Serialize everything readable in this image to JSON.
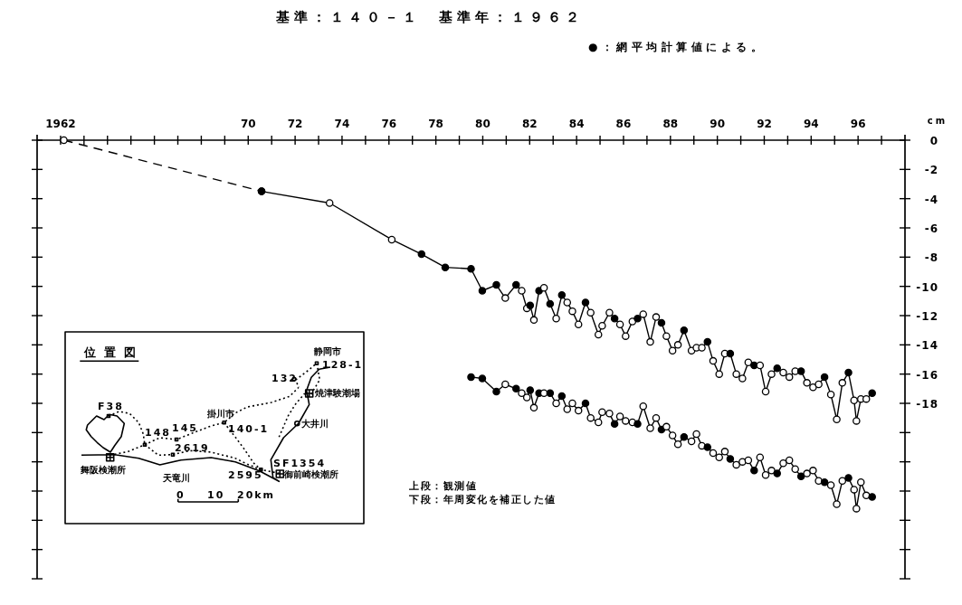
{
  "chart_data": {
    "type": "line",
    "title": "基準：１４０－１　基準年：１９６２",
    "ylabel": "cm",
    "annotations": [
      "●：網平均計算値による。",
      "上段：観測値",
      "下段：年周変化を補正した値",
      "位置図",
      "静岡市",
      "128-1",
      "132",
      "焼津験潮場",
      "F38",
      "148",
      "145",
      "掛川市",
      "140-1",
      "大井川",
      "2619",
      "SF1354",
      "舞阪検潮所",
      "天竜川",
      "2595",
      "御前崎検潮所",
      "0",
      "10",
      "20km"
    ],
    "xlim": [
      1961,
      1998
    ],
    "xticks": [
      {
        "value": 1962,
        "label": "1962"
      },
      {
        "value": 1963,
        "label": null
      },
      {
        "value": 1964,
        "label": null
      },
      {
        "value": 1965,
        "label": null
      },
      {
        "value": 1966,
        "label": null
      },
      {
        "value": 1967,
        "label": null
      },
      {
        "value": 1968,
        "label": null
      },
      {
        "value": 1969,
        "label": null
      },
      {
        "value": 1970,
        "label": "70"
      },
      {
        "value": 1971,
        "label": null
      },
      {
        "value": 1972,
        "label": "72"
      },
      {
        "value": 1973,
        "label": null
      },
      {
        "value": 1974,
        "label": "74"
      },
      {
        "value": 1975,
        "label": null
      },
      {
        "value": 1976,
        "label": "76"
      },
      {
        "value": 1977,
        "label": null
      },
      {
        "value": 1978,
        "label": "78"
      },
      {
        "value": 1979,
        "label": null
      },
      {
        "value": 1980,
        "label": "80"
      },
      {
        "value": 1981,
        "label": null
      },
      {
        "value": 1982,
        "label": "82"
      },
      {
        "value": 1983,
        "label": null
      },
      {
        "value": 1984,
        "label": "84"
      },
      {
        "value": 1985,
        "label": null
      },
      {
        "value": 1986,
        "label": "86"
      },
      {
        "value": 1987,
        "label": null
      },
      {
        "value": 1988,
        "label": "88"
      },
      {
        "value": 1989,
        "label": null
      },
      {
        "value": 1990,
        "label": "90"
      },
      {
        "value": 1991,
        "label": null
      },
      {
        "value": 1992,
        "label": "92"
      },
      {
        "value": 1993,
        "label": null
      },
      {
        "value": 1994,
        "label": "94"
      },
      {
        "value": 1995,
        "label": null
      },
      {
        "value": 1996,
        "label": "96"
      },
      {
        "value": 1997,
        "label": null
      }
    ],
    "ylim": [
      -30,
      0
    ],
    "yticks": [
      0,
      -2,
      -4,
      -6,
      -8,
      -10,
      -12,
      -14,
      -16,
      -18,
      {
        "value": -20,
        "label": null
      },
      {
        "value": -22,
        "label": null
      },
      {
        "value": -24,
        "label": null
      },
      {
        "value": -26,
        "label": null
      },
      {
        "value": -28,
        "label": null
      },
      {
        "value": -30,
        "label": null
      }
    ],
    "grid": false,
    "marker": "circle",
    "series": [
      {
        "color": "#000000",
        "line_style": "dashed",
        "x": [
          1962.14,
          1970.57
        ],
        "values": [
          0,
          -3.5
        ],
        "colors": [
          "#ffffff",
          "#000000"
        ]
      },
      {
        "color": "#000000",
        "line_style": "solid",
        "x": [
          1970.57,
          1973.47,
          1976.12,
          1977.39,
          1978.4,
          1979.5,
          1979.98,
          1980.58,
          1980.96,
          1981.42,
          1981.66,
          1981.88,
          1982.02,
          1982.18,
          1982.4,
          1982.61,
          1982.87,
          1983.13,
          1983.37,
          1983.6,
          1983.82,
          1984.08,
          1984.38,
          1984.6,
          1984.93,
          1985.09,
          1985.4,
          1985.62,
          1985.85,
          1986.09,
          1986.38,
          1986.6,
          1986.84,
          1987.14,
          1987.39,
          1987.62,
          1987.83,
          1988.09,
          1988.32,
          1988.58,
          1988.9,
          1989.11,
          1989.34,
          1989.58,
          1989.82,
          1990.08,
          1990.32,
          1990.55,
          1990.81,
          1991.07,
          1991.32,
          1991.57,
          1991.82,
          1992.06,
          1992.31,
          1992.55,
          1992.81,
          1993.07,
          1993.32,
          1993.57,
          1993.82,
          1994.08,
          1994.32,
          1994.57,
          1994.84,
          1995.09,
          1995.33,
          1995.59,
          1995.83,
          1995.93,
          1996.12,
          1996.35,
          1996.6
        ],
        "values": [
          -3.5,
          -4.3,
          -6.8,
          -7.8,
          -8.7,
          -8.8,
          -10.3,
          -9.9,
          -10.8,
          -9.9,
          -10.3,
          -11.5,
          -11.3,
          -12.3,
          -10.3,
          -10.1,
          -11.2,
          -12.2,
          -10.6,
          -11.1,
          -11.7,
          -12.6,
          -11.1,
          -11.8,
          -13.3,
          -12.7,
          -11.8,
          -12.2,
          -12.6,
          -13.4,
          -12.4,
          -12.2,
          -11.9,
          -13.8,
          -12.1,
          -12.5,
          -13.4,
          -14.4,
          -14.0,
          -13.0,
          -14.4,
          -14.2,
          -14.2,
          -13.8,
          -15.1,
          -16.0,
          -14.6,
          -14.6,
          -16.0,
          -16.3,
          -15.2,
          -15.4,
          -15.4,
          -17.2,
          -16.0,
          -15.6,
          -15.9,
          -16.2,
          -15.8,
          -15.8,
          -16.6,
          -16.9,
          -16.7,
          -16.2,
          -17.4,
          -19.1,
          -16.6,
          -15.9,
          -17.8,
          -19.2,
          -17.7,
          -17.7,
          -17.3
        ],
        "colors": [
          "#000000",
          "#ffffff",
          "#ffffff",
          "#000000",
          "#000000",
          "#000000",
          "#000000",
          "#000000",
          "#ffffff",
          "#000000",
          "#ffffff",
          "#ffffff",
          "#000000",
          "#ffffff",
          "#000000",
          "#ffffff",
          "#000000",
          "#ffffff",
          "#000000",
          "#ffffff",
          "#ffffff",
          "#ffffff",
          "#000000",
          "#ffffff",
          "#ffffff",
          "#ffffff",
          "#ffffff",
          "#000000",
          "#ffffff",
          "#ffffff",
          "#ffffff",
          "#000000",
          "#ffffff",
          "#ffffff",
          "#ffffff",
          "#000000",
          "#ffffff",
          "#ffffff",
          "#ffffff",
          "#000000",
          "#ffffff",
          "#ffffff",
          "#ffffff",
          "#000000",
          "#ffffff",
          "#ffffff",
          "#ffffff",
          "#000000",
          "#ffffff",
          "#ffffff",
          "#ffffff",
          "#000000",
          "#ffffff",
          "#ffffff",
          "#ffffff",
          "#000000",
          "#ffffff",
          "#ffffff",
          "#ffffff",
          "#000000",
          "#ffffff",
          "#ffffff",
          "#ffffff",
          "#000000",
          "#ffffff",
          "#ffffff",
          "#ffffff",
          "#000000",
          "#ffffff",
          "#ffffff",
          "#ffffff",
          "#ffffff",
          "#000000"
        ]
      },
      {
        "color": "#000000",
        "line_style": "solid",
        "x": [
          1979.5,
          1979.98,
          1980.58,
          1980.96,
          1981.42,
          1981.66,
          1981.88,
          1982.02,
          1982.18,
          1982.4,
          1982.61,
          1982.87,
          1983.13,
          1983.37,
          1983.6,
          1983.82,
          1984.08,
          1984.38,
          1984.6,
          1984.93,
          1985.09,
          1985.4,
          1985.62,
          1985.85,
          1986.09,
          1986.38,
          1986.6,
          1986.84,
          1987.14,
          1987.39,
          1987.62,
          1987.83,
          1988.09,
          1988.32,
          1988.58,
          1988.9,
          1989.11,
          1989.34,
          1989.58,
          1989.82,
          1990.08,
          1990.32,
          1990.55,
          1990.81,
          1991.07,
          1991.32,
          1991.57,
          1991.82,
          1992.06,
          1992.31,
          1992.55,
          1992.81,
          1993.07,
          1993.32,
          1993.57,
          1993.82,
          1994.08,
          1994.32,
          1994.57,
          1994.84,
          1995.09,
          1995.33,
          1995.59,
          1995.83,
          1995.93,
          1996.12,
          1996.35,
          1996.6
        ],
        "values": [
          -16.2,
          -16.3,
          -17.2,
          -16.7,
          -17.0,
          -17.3,
          -17.6,
          -17.1,
          -18.3,
          -17.3,
          -17.3,
          -17.3,
          -18.0,
          -17.5,
          -18.4,
          -18.0,
          -18.5,
          -18.0,
          -19.0,
          -19.3,
          -18.6,
          -18.7,
          -19.4,
          -18.9,
          -19.2,
          -19.3,
          -19.4,
          -18.2,
          -19.7,
          -19.0,
          -19.8,
          -19.6,
          -20.2,
          -20.8,
          -20.3,
          -20.6,
          -20.1,
          -20.9,
          -21.0,
          -21.4,
          -21.7,
          -21.3,
          -21.8,
          -22.2,
          -22.0,
          -21.9,
          -22.6,
          -21.7,
          -22.9,
          -22.6,
          -22.8,
          -22.1,
          -21.9,
          -22.5,
          -23.0,
          -22.8,
          -22.6,
          -23.3,
          -23.4,
          -23.6,
          -24.9,
          -23.3,
          -23.1,
          -23.9,
          -25.2,
          -23.4,
          -24.3,
          -24.4
        ],
        "colors": [
          "#000000",
          "#000000",
          "#000000",
          "#ffffff",
          "#000000",
          "#ffffff",
          "#ffffff",
          "#000000",
          "#ffffff",
          "#000000",
          "#ffffff",
          "#000000",
          "#ffffff",
          "#000000",
          "#ffffff",
          "#ffffff",
          "#ffffff",
          "#000000",
          "#ffffff",
          "#ffffff",
          "#ffffff",
          "#ffffff",
          "#000000",
          "#ffffff",
          "#ffffff",
          "#ffffff",
          "#000000",
          "#ffffff",
          "#ffffff",
          "#ffffff",
          "#000000",
          "#ffffff",
          "#ffffff",
          "#ffffff",
          "#000000",
          "#ffffff",
          "#ffffff",
          "#ffffff",
          "#000000",
          "#ffffff",
          "#ffffff",
          "#ffffff",
          "#000000",
          "#ffffff",
          "#ffffff",
          "#ffffff",
          "#000000",
          "#ffffff",
          "#ffffff",
          "#ffffff",
          "#000000",
          "#ffffff",
          "#ffffff",
          "#ffffff",
          "#000000",
          "#ffffff",
          "#ffffff",
          "#ffffff",
          "#000000",
          "#ffffff",
          "#ffffff",
          "#ffffff",
          "#000000",
          "#ffffff",
          "#ffffff",
          "#ffffff",
          "#ffffff",
          "#000000"
        ]
      }
    ]
  }
}
